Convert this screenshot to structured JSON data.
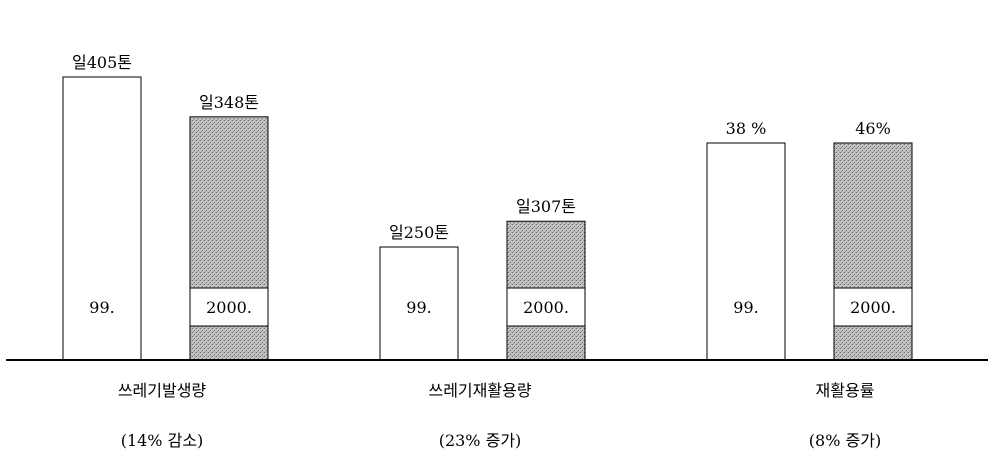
{
  "chart_data": {
    "type": "bar",
    "groups": [
      {
        "name": "쓰레기발생량",
        "note": "(14% 감소)",
        "bars": [
          {
            "year": "99.",
            "value": 405,
            "label": "일405톤"
          },
          {
            "year": "2000.",
            "value": 348,
            "label": "일348톤"
          }
        ]
      },
      {
        "name": "쓰레기재활용량",
        "note": "(23% 증가)",
        "bars": [
          {
            "year": "99.",
            "value": 250,
            "label": "일250톤"
          },
          {
            "year": "2000.",
            "value": 307,
            "label": "일307톤"
          }
        ]
      },
      {
        "name": "재활용률",
        "note": "(8% 증가)",
        "bars": [
          {
            "year": "99.",
            "value": 38,
            "label": "38 %"
          },
          {
            "year": "2000.",
            "value": 46,
            "label": "46%"
          }
        ]
      }
    ],
    "series": [
      {
        "year": "99.",
        "fill": "#ffffff"
      },
      {
        "year": "2000.",
        "fill": "#b5b5b5"
      }
    ]
  }
}
